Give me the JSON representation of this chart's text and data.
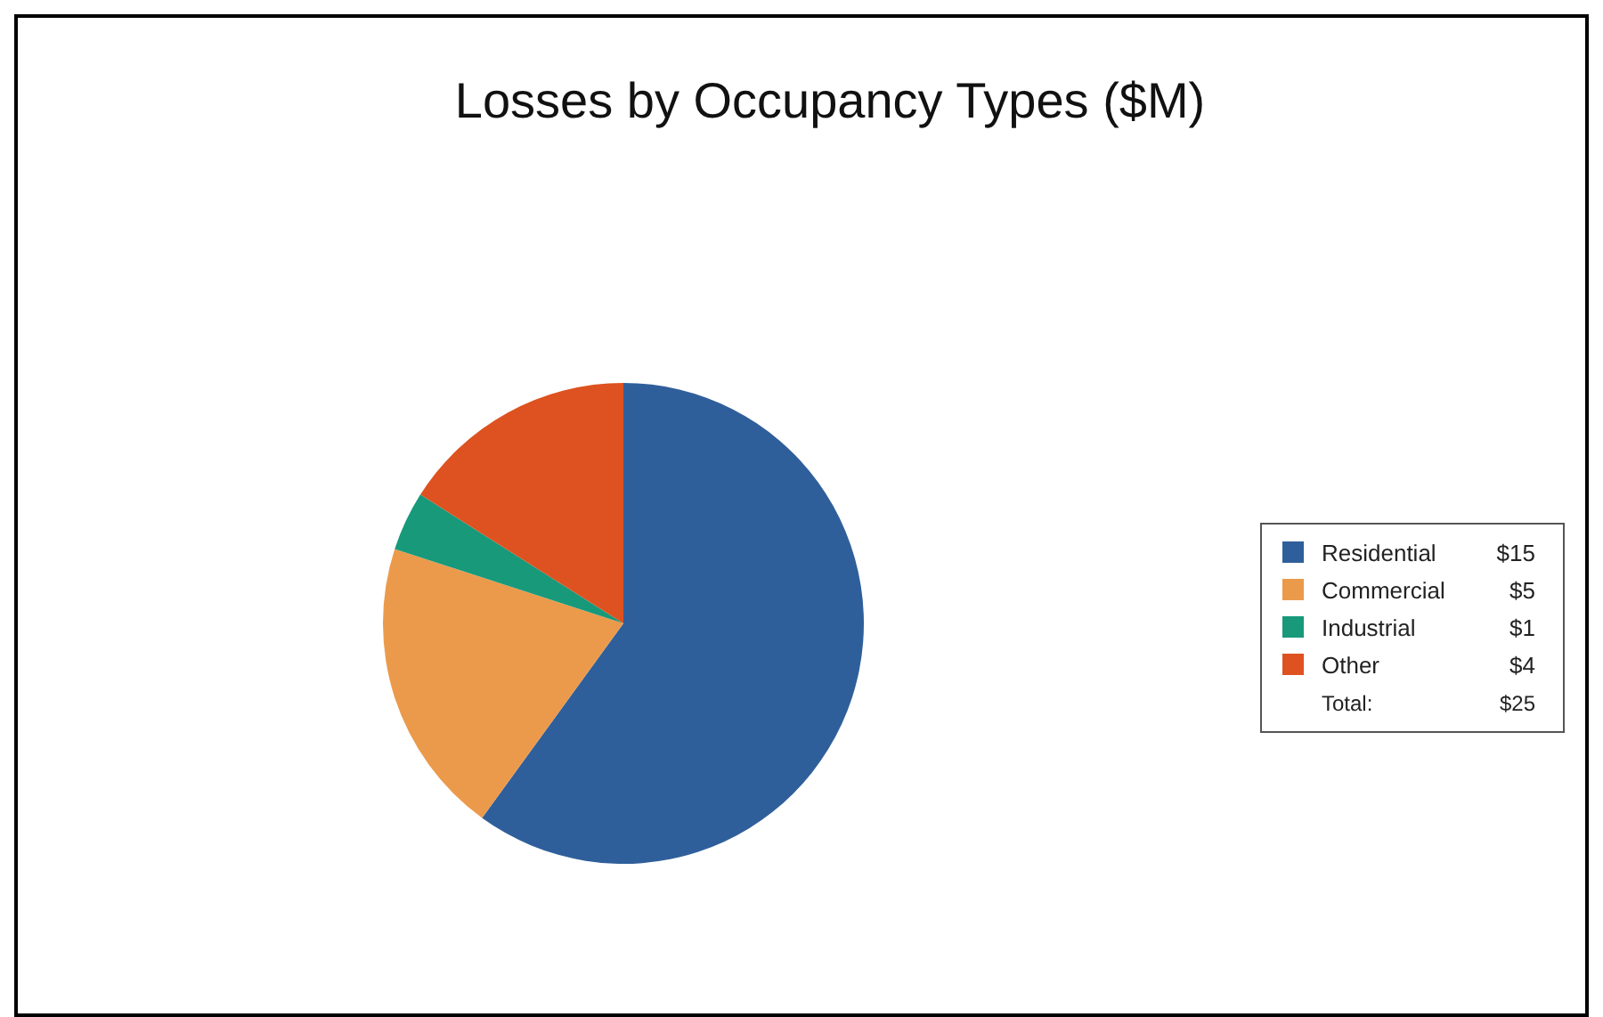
{
  "chart_data": {
    "type": "pie",
    "title": "Losses by Occupancy Types ($M)",
    "categories": [
      "Residential",
      "Commercial",
      "Industrial",
      "Other"
    ],
    "values": [
      15,
      5,
      1,
      4
    ],
    "colors": [
      "#2f5f9b",
      "#eb9a4c",
      "#17997a",
      "#dd5220"
    ],
    "value_labels": [
      "$15",
      "$5",
      "$1",
      "$4"
    ],
    "annotations": [
      "Total:"
    ],
    "totals": [
      "$25"
    ],
    "legend": "right"
  }
}
